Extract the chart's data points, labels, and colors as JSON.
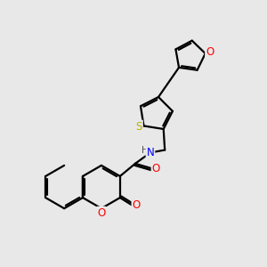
{
  "background_color": "#e8e8e8",
  "bond_color": "#000000",
  "atom_colors": {
    "O": "#ff0000",
    "N": "#0000ff",
    "S": "#b8b000",
    "H": "#505050",
    "C": "#000000"
  },
  "line_width": 1.6,
  "figsize": [
    3.0,
    3.0
  ],
  "dpi": 100,
  "xlim": [
    0,
    10
  ],
  "ylim": [
    0,
    10
  ]
}
